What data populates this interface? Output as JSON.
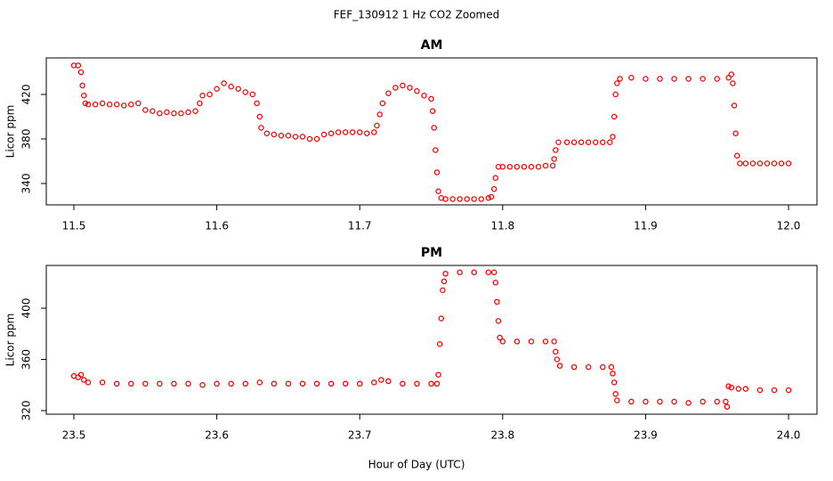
{
  "title": "FEF_130912  1 Hz CO2 Zoomed",
  "xlabel": "Hour of Day (UTC)",
  "chart_data": [
    {
      "type": "scatter",
      "title": "AM",
      "ylabel": "Licor ppm",
      "color": "#ff0000",
      "xlim": [
        11.4807,
        12.0199
      ],
      "ylim": [
        320.8,
        452.8
      ],
      "xticks": [
        11.5,
        11.6,
        11.7,
        11.8,
        11.9,
        {
          "value": 12,
          "label": "12.0"
        }
      ],
      "yticks": [
        340,
        380,
        420
      ],
      "x": [
        11.5,
        11.503,
        11.505,
        11.506,
        11.507,
        11.508,
        11.51,
        11.515,
        11.52,
        11.525,
        11.53,
        11.535,
        11.54,
        11.545,
        11.55,
        11.555,
        11.56,
        11.565,
        11.57,
        11.575,
        11.58,
        11.585,
        11.588,
        11.59,
        11.595,
        11.6,
        11.605,
        11.61,
        11.615,
        11.62,
        11.625,
        11.628,
        11.63,
        11.631,
        11.635,
        11.64,
        11.645,
        11.65,
        11.655,
        11.66,
        11.665,
        11.67,
        11.675,
        11.68,
        11.685,
        11.69,
        11.695,
        11.7,
        11.705,
        11.71,
        11.712,
        11.714,
        11.716,
        11.72,
        11.725,
        11.73,
        11.735,
        11.74,
        11.745,
        11.75,
        11.751,
        11.752,
        11.753,
        11.754,
        11.755,
        11.757,
        11.76,
        11.765,
        11.77,
        11.775,
        11.78,
        11.785,
        11.79,
        11.792,
        11.794,
        11.795,
        11.797,
        11.8,
        11.805,
        11.81,
        11.815,
        11.82,
        11.825,
        11.83,
        11.835,
        11.836,
        11.837,
        11.839,
        11.845,
        11.85,
        11.855,
        11.86,
        11.865,
        11.87,
        11.875,
        11.877,
        11.878,
        11.879,
        11.88,
        11.882,
        11.89,
        11.9,
        11.91,
        11.92,
        11.93,
        11.94,
        11.95,
        11.958,
        11.96,
        11.961,
        11.962,
        11.963,
        11.964,
        11.966,
        11.97,
        11.975,
        11.98,
        11.985,
        11.99,
        11.995,
        12.0
      ],
      "values": [
        446,
        446,
        440,
        428,
        419,
        412,
        411,
        411,
        412,
        411,
        411,
        410,
        411,
        412,
        406,
        405,
        403,
        404,
        403,
        403,
        404,
        405,
        412,
        419,
        420,
        425,
        430,
        427,
        425,
        422,
        420,
        412,
        400,
        390,
        385,
        384,
        383,
        383,
        382,
        382,
        380,
        380,
        384,
        385,
        386,
        386,
        386,
        386,
        385,
        386,
        392,
        402,
        412,
        421,
        426,
        428,
        426,
        423,
        419,
        416,
        405,
        390,
        370,
        350,
        333,
        327,
        326,
        326,
        326,
        326,
        326,
        326,
        327,
        328,
        335,
        345,
        355,
        355,
        355,
        355,
        355,
        355,
        355,
        356,
        356,
        362,
        370,
        377,
        377,
        377,
        377,
        377,
        377,
        377,
        377,
        382,
        400,
        420,
        430,
        434,
        435,
        434,
        434,
        434,
        434,
        434,
        434,
        435,
        438,
        430,
        410,
        385,
        365,
        358,
        358,
        358,
        358,
        358,
        358,
        358,
        358
      ]
    },
    {
      "type": "scatter",
      "title": "PM",
      "ylabel": "Licor ppm",
      "color": "#ff0000",
      "xlim": [
        23.4807,
        24.0199
      ],
      "ylim": [
        317.2,
        433.4
      ],
      "xticks": [
        23.5,
        23.6,
        23.7,
        23.8,
        23.9,
        {
          "value": 24,
          "label": "24.0"
        }
      ],
      "yticks": [
        320,
        360,
        400
      ],
      "x": [
        23.5,
        23.503,
        23.505,
        23.507,
        23.51,
        23.52,
        23.53,
        23.54,
        23.55,
        23.56,
        23.57,
        23.58,
        23.59,
        23.6,
        23.61,
        23.62,
        23.63,
        23.64,
        23.65,
        23.66,
        23.67,
        23.68,
        23.69,
        23.7,
        23.71,
        23.715,
        23.72,
        23.73,
        23.74,
        23.75,
        23.754,
        23.755,
        23.756,
        23.757,
        23.758,
        23.759,
        23.76,
        23.77,
        23.78,
        23.79,
        23.794,
        23.795,
        23.796,
        23.797,
        23.798,
        23.8,
        23.81,
        23.82,
        23.83,
        23.836,
        23.837,
        23.838,
        23.84,
        23.85,
        23.86,
        23.87,
        23.876,
        23.877,
        23.878,
        23.879,
        23.88,
        23.89,
        23.9,
        23.91,
        23.92,
        23.93,
        23.94,
        23.95,
        23.956,
        23.957,
        23.958,
        23.96,
        23.965,
        23.97,
        23.98,
        23.99,
        24.0
      ],
      "values": [
        347,
        346,
        348,
        344,
        342,
        342,
        341,
        341,
        341,
        341,
        341,
        341,
        340,
        341,
        341,
        341,
        342,
        341,
        341,
        341,
        341,
        341,
        341,
        341,
        342,
        344,
        343,
        341,
        341,
        341,
        341,
        348,
        372,
        392,
        414,
        421,
        427,
        428,
        428,
        428,
        428,
        420,
        405,
        390,
        377,
        374,
        374,
        374,
        374,
        374,
        366,
        360,
        355,
        354,
        354,
        354,
        354,
        349,
        342,
        333,
        328,
        327,
        327,
        327,
        327,
        326,
        327,
        327,
        327,
        323,
        339,
        338,
        337,
        337,
        336,
        336,
        336
      ]
    }
  ]
}
